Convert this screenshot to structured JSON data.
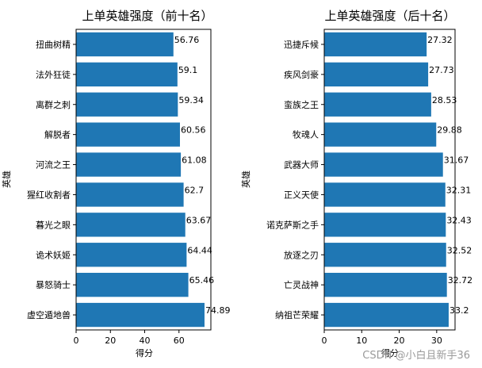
{
  "chart_data": [
    {
      "type": "bar",
      "orientation": "horizontal",
      "title": "上单英雄强度（前十名）",
      "xlabel": "得分",
      "ylabel": "英雄",
      "xlim": [
        0,
        78.6
      ],
      "xticks": [
        0,
        20,
        40,
        60
      ],
      "categories": [
        "扭曲树精",
        "法外狂徒",
        "离群之刺",
        "解脱者",
        "河流之王",
        "猩红收割者",
        "暮光之眼",
        "诡术妖姬",
        "暴怒骑士",
        "虚空遁地兽"
      ],
      "values": [
        56.76,
        59.1,
        59.34,
        60.56,
        61.08,
        62.7,
        63.67,
        64.44,
        65.46,
        74.89
      ],
      "value_labels": [
        "56.76",
        "59.1",
        "59.34",
        "60.56",
        "61.08",
        "62.7",
        "63.67",
        "64.44",
        "65.46",
        "74.89"
      ],
      "bar_color": "#1f77b4",
      "grid": false
    },
    {
      "type": "bar",
      "orientation": "horizontal",
      "title": "上单英雄强度（后十名）",
      "xlabel": "得分",
      "ylabel": "英雄",
      "xlim": [
        0,
        34.9
      ],
      "xticks": [
        0,
        10,
        20,
        30
      ],
      "categories": [
        "迅捷斥候",
        "疾风剑豪",
        "蛮族之王",
        "牧魂人",
        "武器大师",
        "正义天使",
        "诺克萨斯之手",
        "放逐之刃",
        "亡灵战神",
        "纳祖芒荣耀"
      ],
      "values": [
        27.32,
        27.73,
        28.53,
        29.88,
        31.67,
        32.31,
        32.43,
        32.52,
        32.72,
        33.2
      ],
      "value_labels": [
        "27.32",
        "27.73",
        "28.53",
        "29.88",
        "31.67",
        "32.31",
        "32.43",
        "32.52",
        "32.72",
        "33.2"
      ],
      "bar_color": "#1f77b4",
      "grid": false
    }
  ],
  "watermark": "CSDN @小白且新手36"
}
